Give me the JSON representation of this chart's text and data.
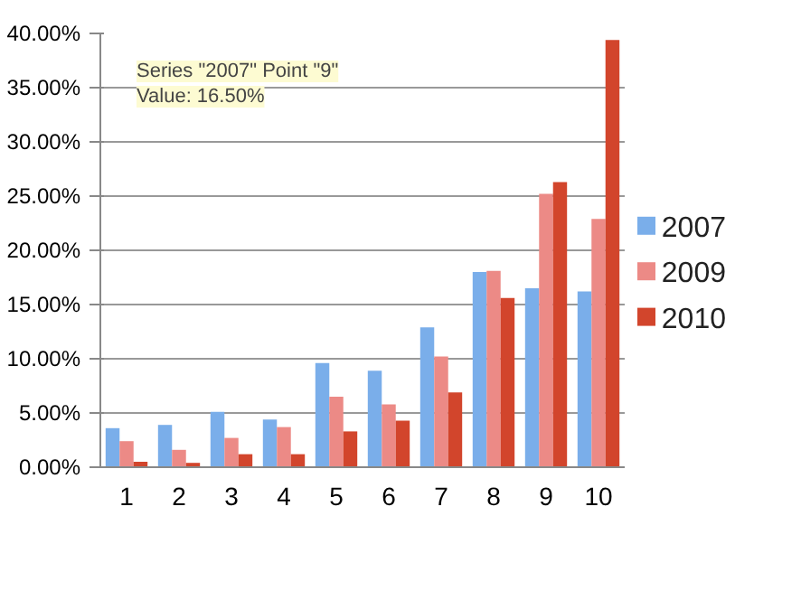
{
  "chart_data": {
    "type": "bar",
    "categories": [
      "1",
      "2",
      "3",
      "4",
      "5",
      "6",
      "7",
      "8",
      "9",
      "10"
    ],
    "series": [
      {
        "name": "2007",
        "color": "#7aaeea",
        "values": [
          3.6,
          3.9,
          5.1,
          4.4,
          9.6,
          8.9,
          12.9,
          18.0,
          16.5,
          16.2
        ]
      },
      {
        "name": "2009",
        "color": "#ec8a86",
        "values": [
          2.4,
          1.6,
          2.7,
          3.7,
          6.5,
          5.8,
          10.2,
          18.1,
          25.2,
          22.9
        ]
      },
      {
        "name": "2010",
        "color": "#d2452c",
        "values": [
          0.5,
          0.4,
          1.2,
          1.2,
          3.3,
          4.3,
          6.9,
          15.6,
          26.3,
          39.4
        ]
      }
    ],
    "ylim": [
      0,
      40
    ],
    "yticks": [
      {
        "value": 0,
        "label": "0.00%"
      },
      {
        "value": 5,
        "label": "5.00%"
      },
      {
        "value": 10,
        "label": "10.00%"
      },
      {
        "value": 15,
        "label": "15.00%"
      },
      {
        "value": 20,
        "label": "20.00%"
      },
      {
        "value": 25,
        "label": "25.00%"
      },
      {
        "value": 30,
        "label": "30.00%"
      },
      {
        "value": 35,
        "label": "35.00%"
      },
      {
        "value": 40,
        "label": "40.00%"
      }
    ],
    "grid": "y",
    "legend": "right",
    "annotations": [
      "Series \"2007\" Point \"9\"\nValue: 16.50%"
    ]
  }
}
